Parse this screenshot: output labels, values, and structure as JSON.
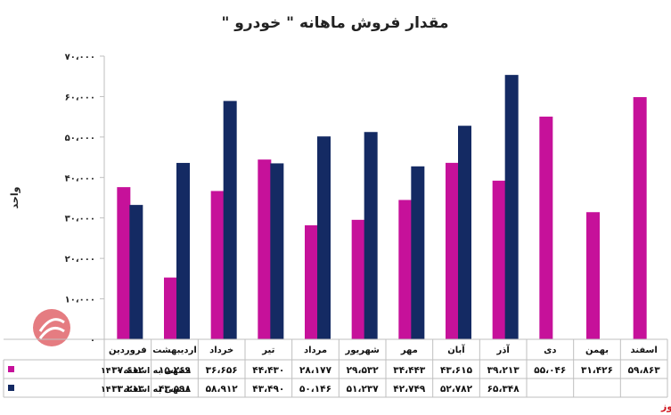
{
  "chart_data": {
    "type": "bar",
    "title": "مقدار فروش ماهانه \" خودرو \"",
    "ylabel": "واحد",
    "xlabel": "",
    "ylim": [
      0,
      70000
    ],
    "yticks": [
      0,
      10000,
      20000,
      30000,
      40000,
      50000,
      60000,
      70000
    ],
    "ytick_labels": [
      "۰",
      "۱۰،۰۰۰",
      "۲۰،۰۰۰",
      "۳۰،۰۰۰",
      "۴۰،۰۰۰",
      "۵۰،۰۰۰",
      "۶۰،۰۰۰",
      "۷۰،۰۰۰"
    ],
    "grid": false,
    "legend": "data-table-bottom",
    "categories": [
      "فروردین",
      "اردیبهشت",
      "خرداد",
      "تیر",
      "مرداد",
      "شهریور",
      "مهر",
      "آبان",
      "آذر",
      "دی",
      "بهمن",
      "اسفند"
    ],
    "series": [
      {
        "name": "منتهی به اسفند ۱۴۰۰",
        "color": "#c6119a",
        "values": [
          37612,
          15269,
          36656,
          44430,
          28177,
          29532,
          34443,
          43615,
          39213,
          55046,
          31426,
          59863
        ],
        "labels": [
          "۳۷،۶۱۲",
          "۱۵،۲۶۹",
          "۳۶،۶۵۶",
          "۴۴،۴۳۰",
          "۲۸،۱۷۷",
          "۲۹،۵۳۲",
          "۳۴،۴۴۳",
          "۴۳،۶۱۵",
          "۳۹،۲۱۳",
          "۵۵،۰۴۶",
          "۳۱،۴۲۶",
          "۵۹،۸۶۳"
        ]
      },
      {
        "name": "منتهی به اسفند ۱۴۰۱",
        "color": "#142a63",
        "values": [
          33213,
          43598,
          58912,
          43490,
          50146,
          51237,
          42749,
          52782,
          65348,
          null,
          null,
          null
        ],
        "labels": [
          "۳۳،۲۱۳",
          "۴۳،۵۹۸",
          "۵۸،۹۱۲",
          "۴۳،۴۹۰",
          "۵۰،۱۴۶",
          "۵۱،۲۳۷",
          "۴۲،۷۴۹",
          "۵۲،۷۸۲",
          "۶۵،۳۴۸",
          "",
          "",
          ""
        ]
      }
    ]
  },
  "watermark": {
    "text": "بورس نیوز",
    "logo_color": "#d0121b"
  }
}
